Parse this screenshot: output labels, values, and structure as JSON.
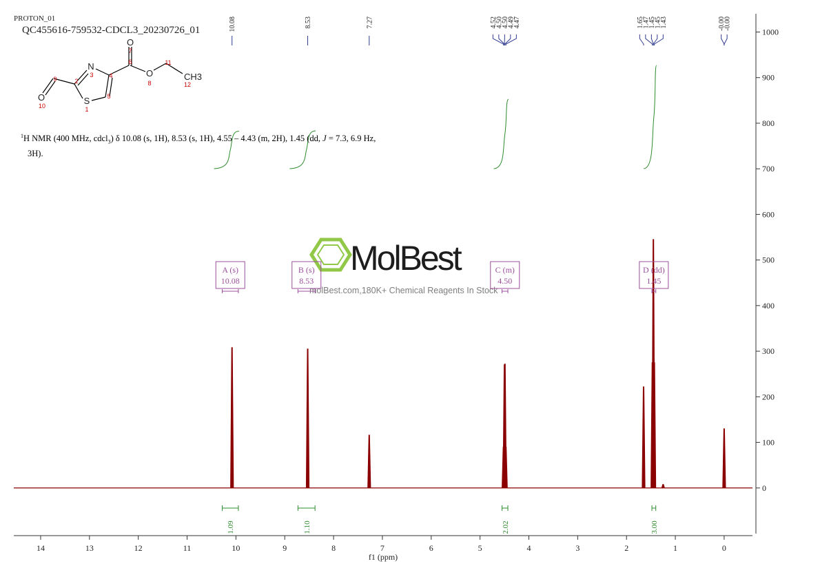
{
  "chart_data": {
    "type": "nmr",
    "title": "PROTON_01",
    "subtitle": "QC455616-759532-CDCL3_20230726_01",
    "x_label": "f1  (ppm)",
    "xlim": [
      14.55,
      -0.58
    ],
    "xticks": [
      14,
      13,
      12,
      11,
      10,
      9,
      8,
      7,
      6,
      5,
      4,
      3,
      2,
      1,
      0
    ],
    "ylim": [
      -100,
      1040
    ],
    "yticks": [
      0,
      100,
      200,
      300,
      400,
      500,
      600,
      700,
      800,
      900,
      1000
    ],
    "color": "#8b0000",
    "peaks": {
      "x": [
        10.08,
        8.53,
        7.27,
        4.52,
        4.5,
        4.49,
        4.47,
        1.65,
        1.47,
        1.45,
        1.43,
        1.25,
        0.0
      ],
      "values": [
        308,
        305,
        116,
        90,
        270,
        272,
        90,
        222,
        275,
        545,
        275,
        8,
        130
      ]
    },
    "peak_labels": [
      {
        "value": 10.08,
        "label": "10.08"
      },
      {
        "value": 8.53,
        "label": "8.53"
      },
      {
        "value": 7.27,
        "label": "7.27"
      },
      {
        "value": 4.52,
        "label": "4.52"
      },
      {
        "value": 4.5,
        "label": "4.50"
      },
      {
        "value": 4.5,
        "label": "4.50"
      },
      {
        "value": 4.49,
        "label": "4.49"
      },
      {
        "value": 4.47,
        "label": "4.47"
      },
      {
        "value": 1.65,
        "label": "1.65"
      },
      {
        "value": 1.47,
        "label": "1.47"
      },
      {
        "value": 1.45,
        "label": "1.45"
      },
      {
        "value": 1.45,
        "label": "1.45"
      },
      {
        "value": 1.43,
        "label": "1.43"
      },
      {
        "value": 0,
        "label": "-0.00"
      },
      {
        "value": 0,
        "label": "-0.00"
      }
    ],
    "multiplets": [
      {
        "label": "A (s)",
        "shift": "10.08",
        "range": [
          10.28,
          9.95
        ]
      },
      {
        "label": "B (s)",
        "shift": "8.53",
        "range": [
          8.73,
          8.38
        ]
      },
      {
        "label": "C (m)",
        "shift": "4.50",
        "range": [
          4.55,
          4.43
        ]
      },
      {
        "label": "D (dd)",
        "shift": "1.45",
        "range": [
          1.48,
          1.4
        ]
      }
    ],
    "integrals": {
      "values": [
        1.09,
        1.1,
        2.02,
        3.0
      ],
      "value_labels": [
        "1.09",
        "1.10",
        "2.02",
        "3.00"
      ],
      "ranges": [
        [
          10.28,
          9.95
        ],
        [
          8.73,
          8.38
        ],
        [
          4.55,
          4.43
        ],
        [
          1.48,
          1.4
        ]
      ]
    },
    "description": [
      "1",
      "H NMR (400 MHz, cdcl",
      "3",
      ") δ 10.08 (s, 1H), 8.53 (s, 1H), 4.55 – 4.43 (m, 2H), 1.45 (dd, ",
      "J",
      " = 7.3, 6.9 Hz,",
      "3H)."
    ],
    "structure": {
      "atoms": [
        "O",
        "N",
        "O",
        "CH3",
        "O",
        "S"
      ],
      "numbers": [
        "7",
        "6",
        "3",
        "4",
        "9",
        "2",
        "11",
        "8",
        "12",
        "10",
        "5",
        "1"
      ]
    },
    "watermark": {
      "brand": "MolBest",
      "tagline": "molBest.com,180K+ Chemical Reagents In Stock"
    }
  }
}
